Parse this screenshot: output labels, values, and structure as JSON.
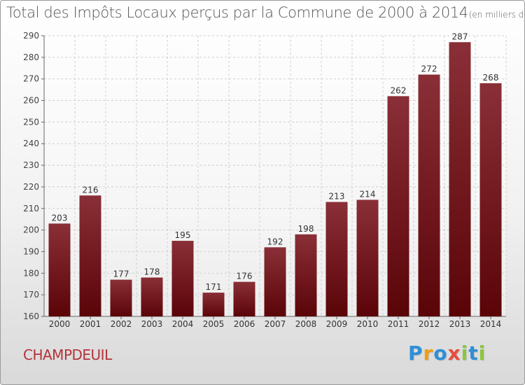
{
  "title": "Total des Impôts Locaux perçus par la Commune de 2000 à 2014",
  "unit_note": "(en milliers d'€)",
  "commune": "CHAMPDEUIL",
  "logo": {
    "text": "Proxiti",
    "letters": [
      {
        "ch": "P",
        "color": "#2e8fd8"
      },
      {
        "ch": "r",
        "color": "#f39c12"
      },
      {
        "ch": "o",
        "color": "#2e8fd8"
      },
      {
        "ch": "x",
        "color": "#e74c3c"
      },
      {
        "ch": "i",
        "color": "#8cc63f"
      },
      {
        "ch": "t",
        "color": "#2e8fd8"
      },
      {
        "ch": "i",
        "color": "#8cc63f"
      }
    ]
  },
  "chart_data": {
    "type": "bar",
    "categories": [
      "2000",
      "2001",
      "2002",
      "2003",
      "2004",
      "2005",
      "2006",
      "2007",
      "2008",
      "2009",
      "2010",
      "2011",
      "2012",
      "2013",
      "2014"
    ],
    "values": [
      203,
      216,
      177,
      178,
      195,
      171,
      176,
      192,
      198,
      213,
      214,
      262,
      272,
      287,
      268
    ],
    "ylim": [
      160,
      290
    ],
    "yticks": [
      160,
      170,
      180,
      190,
      200,
      210,
      220,
      230,
      240,
      250,
      260,
      270,
      280,
      290
    ],
    "grid": true,
    "bar_color_top": "#8a2f37",
    "bar_color_bottom": "#5a0408"
  }
}
